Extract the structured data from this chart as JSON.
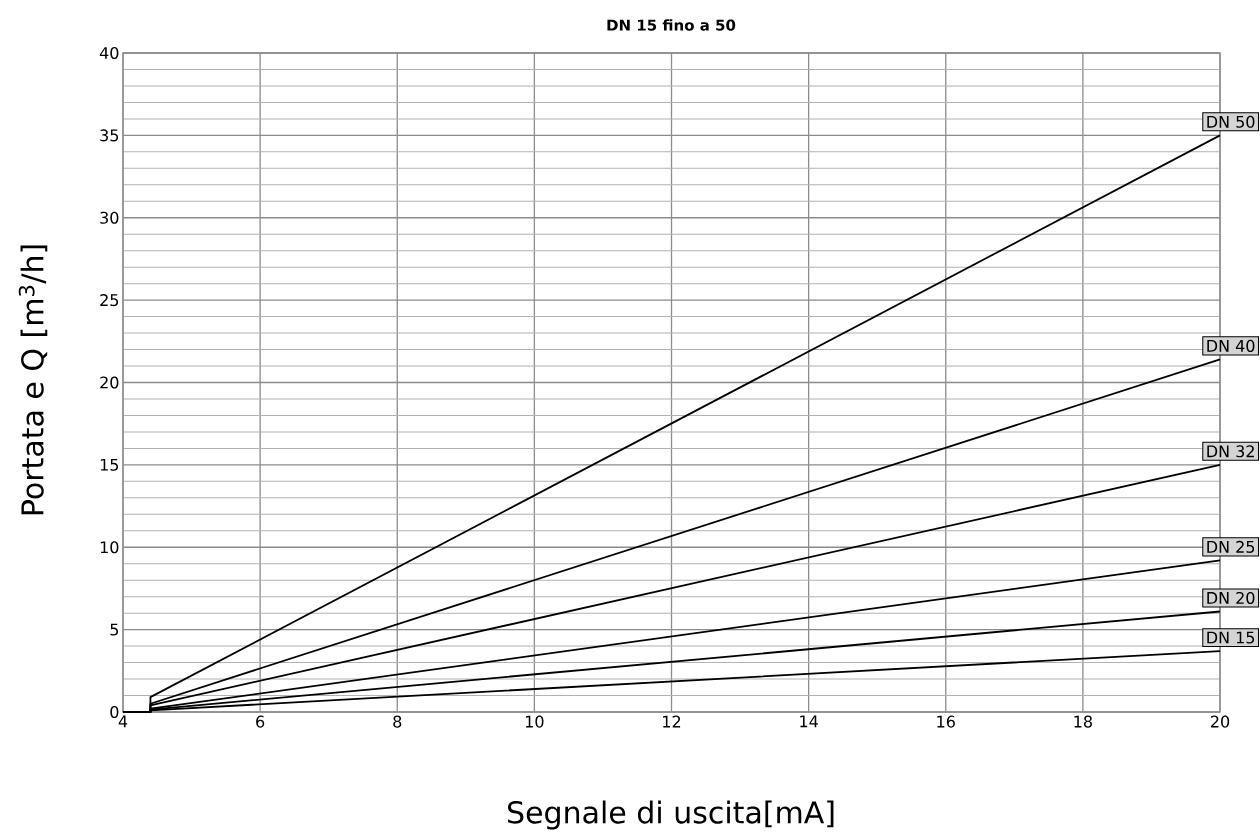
{
  "chart_data": {
    "type": "line",
    "title": "DN 15 fino a 50",
    "xlabel": "Segnale di uscita[mA]",
    "ylabel": "Portata e Q [m$^{3}$/h]",
    "xlim": [
      4,
      20
    ],
    "ylim": [
      0,
      40
    ],
    "xticks": [
      4,
      6,
      8,
      10,
      12,
      14,
      16,
      18,
      20
    ],
    "yticks": [
      0,
      5,
      10,
      15,
      20,
      25,
      30,
      35,
      40
    ],
    "grid": true,
    "series": [
      {
        "name": "DN 50",
        "color": "#000000",
        "x": [
          4,
          4.4,
          4.4,
          20
        ],
        "values": [
          0,
          0,
          0.9,
          35
        ]
      },
      {
        "name": "DN 40",
        "color": "#000000",
        "x": [
          4,
          4.4,
          4.4,
          20
        ],
        "values": [
          0,
          0,
          0.5,
          21.4
        ]
      },
      {
        "name": "DN 32",
        "color": "#000000",
        "x": [
          4,
          4.4,
          4.4,
          20
        ],
        "values": [
          0,
          0,
          0.4,
          15
        ]
      },
      {
        "name": "DN 25",
        "color": "#000000",
        "x": [
          4,
          4.4,
          4.4,
          20
        ],
        "values": [
          0,
          0,
          0.2,
          9.2
        ]
      },
      {
        "name": "DN 20",
        "color": "#000000",
        "x": [
          4,
          4.4,
          4.4,
          20
        ],
        "values": [
          0,
          0,
          0.15,
          6.1
        ]
      },
      {
        "name": "DN 15",
        "color": "#000000",
        "x": [
          4,
          4.4,
          4.4,
          20
        ],
        "values": [
          0,
          0,
          0.1,
          3.7
        ]
      }
    ]
  }
}
